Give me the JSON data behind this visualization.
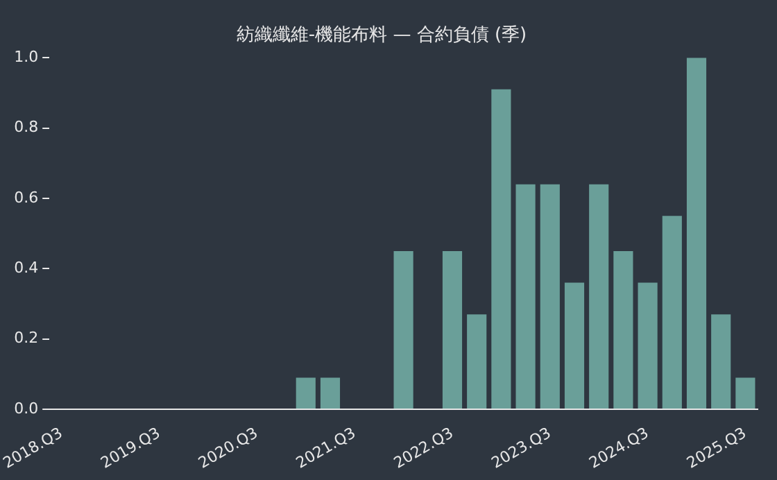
{
  "chart_data": {
    "type": "bar",
    "title": "紡織纖維-機能布料 — 合約負債 (季)",
    "categories": [
      "2018.Q3",
      null,
      null,
      null,
      "2019.Q3",
      null,
      null,
      null,
      "2020.Q3",
      null,
      null,
      null,
      "2021.Q3",
      null,
      null,
      null,
      "2022.Q3",
      null,
      null,
      null,
      "2023.Q3",
      null,
      null,
      null,
      "2024.Q3",
      null,
      null,
      null,
      "2025.Q3"
    ],
    "values": [
      0,
      0,
      0,
      0,
      0,
      0,
      0,
      0,
      0,
      0,
      0.09,
      0.09,
      0,
      0,
      0.45,
      0,
      0.45,
      0.27,
      0.91,
      0.64,
      0.64,
      0.36,
      0.64,
      0.45,
      0.36,
      0.55,
      1.0,
      0.27,
      0.09
    ],
    "color": "#6a9f99",
    "ylim": [
      0,
      1
    ],
    "yticks": [
      {
        "value": 0,
        "label": "0.0"
      },
      {
        "value": 0.2,
        "label": "0.2"
      },
      {
        "value": 0.4,
        "label": "0.4"
      },
      {
        "value": 0.6,
        "label": "0.6"
      },
      {
        "value": 0.8,
        "label": "0.8"
      },
      {
        "value": 1,
        "label": "1.0"
      }
    ],
    "grid": false,
    "legend": false
  }
}
